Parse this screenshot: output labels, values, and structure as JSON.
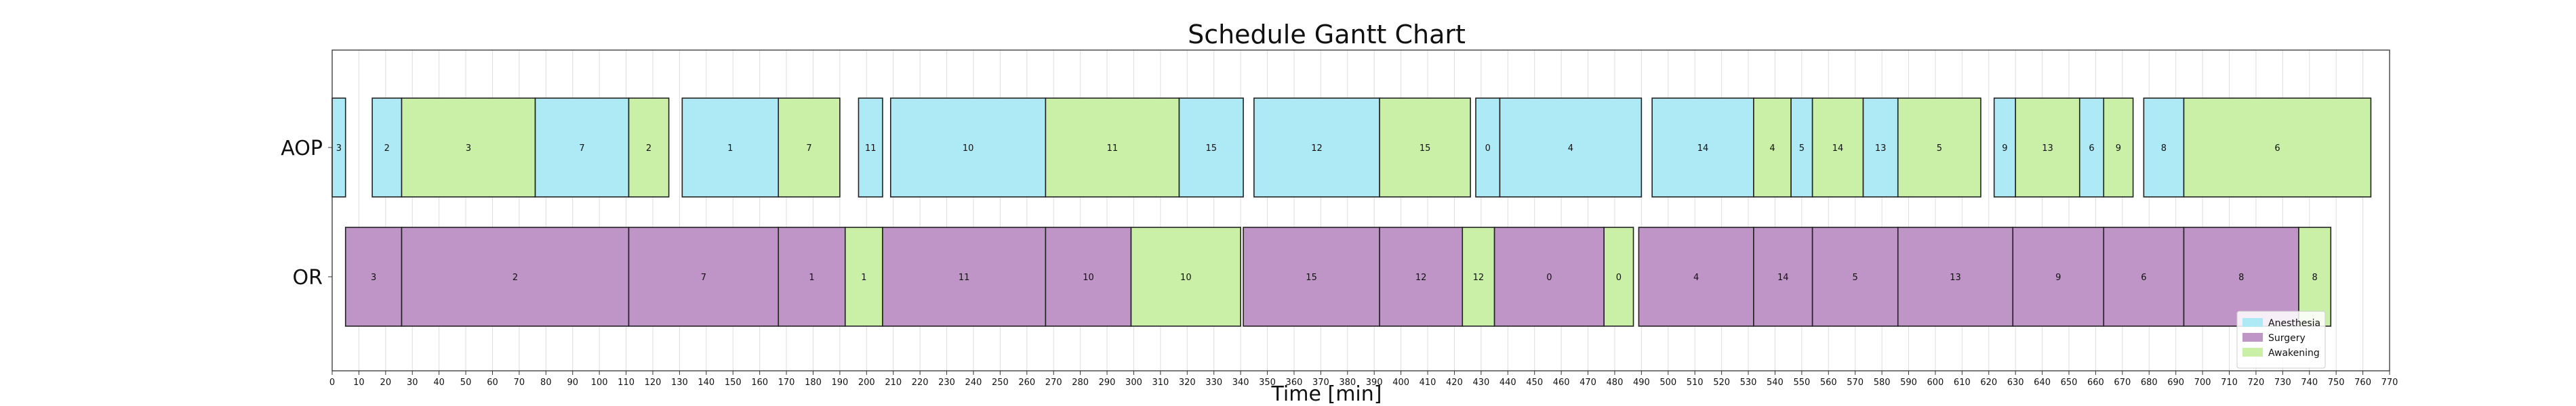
{
  "chart_data": {
    "type": "gantt",
    "title": "Schedule Gantt Chart",
    "xlabel": "Time [min]",
    "ylabel": "",
    "xlim": [
      0,
      770
    ],
    "x_tick_step": 10,
    "grid": true,
    "legend_position": "bottom-right",
    "rows": [
      "AOP",
      "OR"
    ],
    "phases": [
      {
        "name": "Anesthesia",
        "color": "#aeeaf5"
      },
      {
        "name": "Surgery",
        "color": "#bf94c7"
      },
      {
        "name": "Awakening",
        "color": "#c9f0a6"
      }
    ],
    "tasks": [
      {
        "row": "AOP",
        "phase": "Anesthesia",
        "start": 0,
        "end": 5,
        "label": "3"
      },
      {
        "row": "AOP",
        "phase": "Anesthesia",
        "start": 15,
        "end": 26,
        "label": "2"
      },
      {
        "row": "AOP",
        "phase": "Awakening",
        "start": 26,
        "end": 76,
        "label": "3"
      },
      {
        "row": "AOP",
        "phase": "Anesthesia",
        "start": 76,
        "end": 111,
        "label": "7"
      },
      {
        "row": "AOP",
        "phase": "Awakening",
        "start": 111,
        "end": 126,
        "label": "2"
      },
      {
        "row": "AOP",
        "phase": "Anesthesia",
        "start": 131,
        "end": 167,
        "label": "1"
      },
      {
        "row": "AOP",
        "phase": "Awakening",
        "start": 167,
        "end": 190,
        "label": "7"
      },
      {
        "row": "AOP",
        "phase": "Anesthesia",
        "start": 197,
        "end": 206,
        "label": "11"
      },
      {
        "row": "AOP",
        "phase": "Anesthesia",
        "start": 209,
        "end": 267,
        "label": "10"
      },
      {
        "row": "AOP",
        "phase": "Awakening",
        "start": 267,
        "end": 317,
        "label": "11"
      },
      {
        "row": "AOP",
        "phase": "Anesthesia",
        "start": 317,
        "end": 341,
        "label": "15"
      },
      {
        "row": "AOP",
        "phase": "Anesthesia",
        "start": 345,
        "end": 392,
        "label": "12"
      },
      {
        "row": "AOP",
        "phase": "Awakening",
        "start": 392,
        "end": 426,
        "label": "15"
      },
      {
        "row": "AOP",
        "phase": "Anesthesia",
        "start": 428,
        "end": 437,
        "label": "0"
      },
      {
        "row": "AOP",
        "phase": "Anesthesia",
        "start": 437,
        "end": 490,
        "label": "4"
      },
      {
        "row": "AOP",
        "phase": "Anesthesia",
        "start": 494,
        "end": 532,
        "label": "14"
      },
      {
        "row": "AOP",
        "phase": "Awakening",
        "start": 532,
        "end": 546,
        "label": "4"
      },
      {
        "row": "AOP",
        "phase": "Anesthesia",
        "start": 546,
        "end": 554,
        "label": "5"
      },
      {
        "row": "AOP",
        "phase": "Awakening",
        "start": 554,
        "end": 573,
        "label": "14"
      },
      {
        "row": "AOP",
        "phase": "Anesthesia",
        "start": 573,
        "end": 586,
        "label": "13"
      },
      {
        "row": "AOP",
        "phase": "Awakening",
        "start": 586,
        "end": 617,
        "label": "5"
      },
      {
        "row": "AOP",
        "phase": "Anesthesia",
        "start": 622,
        "end": 630,
        "label": "9"
      },
      {
        "row": "AOP",
        "phase": "Awakening",
        "start": 630,
        "end": 654,
        "label": "13"
      },
      {
        "row": "AOP",
        "phase": "Anesthesia",
        "start": 654,
        "end": 663,
        "label": "6"
      },
      {
        "row": "AOP",
        "phase": "Awakening",
        "start": 663,
        "end": 674,
        "label": "9"
      },
      {
        "row": "AOP",
        "phase": "Anesthesia",
        "start": 678,
        "end": 693,
        "label": "8"
      },
      {
        "row": "AOP",
        "phase": "Awakening",
        "start": 693,
        "end": 763,
        "label": "6"
      },
      {
        "row": "OR",
        "phase": "Surgery",
        "start": 5,
        "end": 26,
        "label": "3"
      },
      {
        "row": "OR",
        "phase": "Surgery",
        "start": 26,
        "end": 111,
        "label": "2"
      },
      {
        "row": "OR",
        "phase": "Surgery",
        "start": 111,
        "end": 167,
        "label": "7"
      },
      {
        "row": "OR",
        "phase": "Surgery",
        "start": 167,
        "end": 192,
        "label": "1"
      },
      {
        "row": "OR",
        "phase": "Awakening",
        "start": 192,
        "end": 206,
        "label": "1"
      },
      {
        "row": "OR",
        "phase": "Surgery",
        "start": 206,
        "end": 267,
        "label": "11"
      },
      {
        "row": "OR",
        "phase": "Surgery",
        "start": 267,
        "end": 299,
        "label": "10"
      },
      {
        "row": "OR",
        "phase": "Awakening",
        "start": 299,
        "end": 340,
        "label": "10"
      },
      {
        "row": "OR",
        "phase": "Surgery",
        "start": 341,
        "end": 392,
        "label": "15"
      },
      {
        "row": "OR",
        "phase": "Surgery",
        "start": 392,
        "end": 423,
        "label": "12"
      },
      {
        "row": "OR",
        "phase": "Awakening",
        "start": 423,
        "end": 435,
        "label": "12"
      },
      {
        "row": "OR",
        "phase": "Surgery",
        "start": 435,
        "end": 476,
        "label": "0"
      },
      {
        "row": "OR",
        "phase": "Awakening",
        "start": 476,
        "end": 487,
        "label": "0"
      },
      {
        "row": "OR",
        "phase": "Surgery",
        "start": 489,
        "end": 532,
        "label": "4"
      },
      {
        "row": "OR",
        "phase": "Surgery",
        "start": 532,
        "end": 554,
        "label": "14"
      },
      {
        "row": "OR",
        "phase": "Surgery",
        "start": 554,
        "end": 586,
        "label": "5"
      },
      {
        "row": "OR",
        "phase": "Surgery",
        "start": 586,
        "end": 629,
        "label": "13"
      },
      {
        "row": "OR",
        "phase": "Surgery",
        "start": 629,
        "end": 663,
        "label": "9"
      },
      {
        "row": "OR",
        "phase": "Surgery",
        "start": 663,
        "end": 693,
        "label": "6"
      },
      {
        "row": "OR",
        "phase": "Surgery",
        "start": 693,
        "end": 736,
        "label": "8"
      },
      {
        "row": "OR",
        "phase": "Awakening",
        "start": 736,
        "end": 748,
        "label": "8"
      }
    ]
  }
}
